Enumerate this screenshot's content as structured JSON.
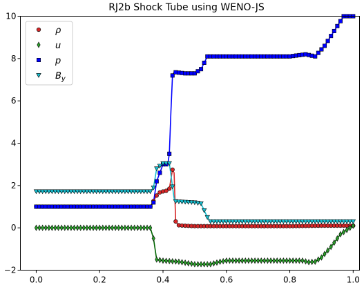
{
  "chart_data": {
    "type": "line",
    "title": "RJ2b Shock Tube using WENO-JS",
    "xlabel": "",
    "ylabel": "",
    "xlim": [
      -0.05,
      1.02
    ],
    "ylim": [
      -2,
      10
    ],
    "xticks": [
      0.0,
      0.2,
      0.4,
      0.6,
      0.8,
      1.0
    ],
    "xtick_labels": [
      "0.0",
      "0.2",
      "0.4",
      "0.6",
      "0.8",
      "1.0"
    ],
    "yticks": [
      -2,
      0,
      2,
      4,
      6,
      8,
      10
    ],
    "ytick_labels": [
      "−2",
      "0",
      "2",
      "4",
      "6",
      "8",
      "10"
    ],
    "grid": false,
    "legend_position": "top-left",
    "series": [
      {
        "name": "ρ",
        "marker": "circle",
        "marker_color": "#d62728",
        "line_color": "#d62728",
        "x": [
          0.0,
          0.36,
          0.375,
          0.385,
          0.4,
          0.41,
          0.42,
          0.425,
          0.43,
          0.435,
          0.44,
          0.45,
          0.47,
          0.5,
          0.55,
          0.6,
          0.7,
          0.8,
          0.9,
          1.0
        ],
        "y": [
          1.0,
          1.0,
          1.4,
          1.65,
          1.72,
          1.75,
          1.85,
          2.3,
          2.75,
          2.6,
          0.3,
          0.12,
          0.1,
          0.08,
          0.08,
          0.08,
          0.08,
          0.08,
          0.1,
          0.1
        ]
      },
      {
        "name": "u",
        "marker": "diamond",
        "marker_color": "#2ca02c",
        "line_color": "#006400",
        "x": [
          0.0,
          0.36,
          0.37,
          0.38,
          0.4,
          0.45,
          0.5,
          0.55,
          0.58,
          0.6,
          0.7,
          0.8,
          0.84,
          0.86,
          0.88,
          0.9,
          0.93,
          0.96,
          1.0
        ],
        "y": [
          0.0,
          0.0,
          -0.5,
          -1.5,
          -1.55,
          -1.6,
          -1.72,
          -1.72,
          -1.6,
          -1.55,
          -1.55,
          -1.55,
          -1.55,
          -1.62,
          -1.6,
          -1.4,
          -0.9,
          -0.3,
          0.1
        ]
      },
      {
        "name": "p",
        "marker": "square",
        "marker_color": "#0000ff",
        "line_color": "#0000ff",
        "x": [
          0.0,
          0.36,
          0.37,
          0.38,
          0.4,
          0.415,
          0.42,
          0.425,
          0.43,
          0.435,
          0.44,
          0.47,
          0.5,
          0.52,
          0.54,
          0.6,
          0.7,
          0.8,
          0.85,
          0.88,
          0.91,
          0.94,
          0.97,
          1.0
        ],
        "y": [
          1.0,
          1.0,
          1.2,
          2.2,
          3.0,
          3.0,
          3.5,
          5.5,
          7.2,
          7.35,
          7.35,
          7.3,
          7.3,
          7.5,
          8.1,
          8.1,
          8.1,
          8.1,
          8.2,
          8.1,
          8.6,
          9.3,
          10.0,
          10.0
        ]
      },
      {
        "name": "B_y",
        "marker": "triangle-down",
        "marker_color": "#17becf",
        "line_color": "#17becf",
        "x": [
          0.0,
          0.36,
          0.37,
          0.38,
          0.4,
          0.42,
          0.425,
          0.435,
          0.44,
          0.5,
          0.52,
          0.54,
          0.55,
          0.6,
          0.7,
          0.8,
          0.9,
          1.0
        ],
        "y": [
          1.72,
          1.72,
          1.9,
          2.8,
          3.05,
          3.05,
          2.5,
          1.4,
          1.25,
          1.2,
          1.15,
          0.5,
          0.3,
          0.3,
          0.3,
          0.3,
          0.3,
          0.3
        ]
      }
    ]
  }
}
